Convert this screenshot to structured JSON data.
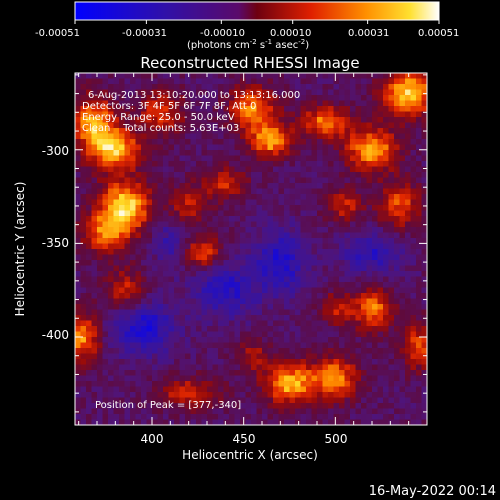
{
  "chart_data": {
    "type": "heatmap",
    "title": "Reconstructed RHESSI Image",
    "xlabel": "Heliocentric X (arcsec)",
    "ylabel": "Heliocentric Y (arcsec)",
    "xlim": [
      358,
      550
    ],
    "ylim": [
      -447,
      -259
    ],
    "x_ticks": [
      400,
      450,
      500
    ],
    "y_ticks": [
      -300,
      -350,
      -400
    ],
    "colorbar": {
      "colormap": "blue-purple-red-yellow-white",
      "range": [
        -0.00051,
        0.00051
      ],
      "ticks": [
        "-0.00051",
        "-0.00031",
        "-0.00010",
        "0.00010",
        "0.00031",
        "0.00051"
      ],
      "unit_label": {
        "prefix": "(photons cm",
        "exp1": "-2",
        "mid1": " s",
        "exp2": "-1",
        "mid2": " asec",
        "exp3": "-2",
        "suffix": ")"
      }
    },
    "annotations": [
      "6-Aug-2013 13:10:20.000 to 13:13:16.000",
      "Detectors: 3F 4F 5F 6F 7F 8F, Att 0",
      "Energy Range: 25.0 - 50.0 keV",
      "Clean    Total counts: 5.63E+03"
    ],
    "peak_text": "Position of Peak = [377,-340]",
    "hotspots": [
      {
        "x": 368,
        "y": -285,
        "amp": 0.8,
        "sx": 8,
        "sy": 10
      },
      {
        "x": 380,
        "y": -300,
        "amp": 0.9,
        "sx": 10,
        "sy": 8
      },
      {
        "x": 385,
        "y": -330,
        "amp": 1.0,
        "sx": 10,
        "sy": 9
      },
      {
        "x": 375,
        "y": -345,
        "amp": 0.7,
        "sx": 9,
        "sy": 7
      },
      {
        "x": 362,
        "y": -400,
        "amp": 0.75,
        "sx": 7,
        "sy": 9
      },
      {
        "x": 385,
        "y": -375,
        "amp": 0.5,
        "sx": 8,
        "sy": 8
      },
      {
        "x": 405,
        "y": -280,
        "amp": 0.55,
        "sx": 9,
        "sy": 8
      },
      {
        "x": 420,
        "y": -330,
        "amp": 0.45,
        "sx": 8,
        "sy": 8
      },
      {
        "x": 428,
        "y": -355,
        "amp": 0.6,
        "sx": 7,
        "sy": 6
      },
      {
        "x": 440,
        "y": -318,
        "amp": 0.5,
        "sx": 8,
        "sy": 6
      },
      {
        "x": 455,
        "y": -278,
        "amp": 0.75,
        "sx": 9,
        "sy": 8
      },
      {
        "x": 465,
        "y": -295,
        "amp": 0.85,
        "sx": 8,
        "sy": 6
      },
      {
        "x": 495,
        "y": -285,
        "amp": 0.7,
        "sx": 10,
        "sy": 6
      },
      {
        "x": 520,
        "y": -300,
        "amp": 0.85,
        "sx": 10,
        "sy": 8
      },
      {
        "x": 540,
        "y": -270,
        "amp": 0.95,
        "sx": 10,
        "sy": 9
      },
      {
        "x": 535,
        "y": -330,
        "amp": 0.6,
        "sx": 8,
        "sy": 9
      },
      {
        "x": 505,
        "y": -330,
        "amp": 0.5,
        "sx": 7,
        "sy": 6
      },
      {
        "x": 500,
        "y": -385,
        "amp": 0.45,
        "sx": 6,
        "sy": 6
      },
      {
        "x": 520,
        "y": -385,
        "amp": 0.7,
        "sx": 8,
        "sy": 8
      },
      {
        "x": 545,
        "y": -405,
        "amp": 0.6,
        "sx": 6,
        "sy": 9
      },
      {
        "x": 475,
        "y": -425,
        "amp": 0.85,
        "sx": 10,
        "sy": 8
      },
      {
        "x": 500,
        "y": -422,
        "amp": 0.75,
        "sx": 9,
        "sy": 8
      },
      {
        "x": 420,
        "y": -430,
        "amp": 0.5,
        "sx": 12,
        "sy": 6
      },
      {
        "x": 455,
        "y": -410,
        "amp": 0.4,
        "sx": 6,
        "sy": 6
      }
    ],
    "coldspots": [
      {
        "x": 395,
        "y": -395,
        "amp": 0.6,
        "sx": 12,
        "sy": 10
      },
      {
        "x": 470,
        "y": -360,
        "amp": 0.55,
        "sx": 10,
        "sy": 12
      },
      {
        "x": 440,
        "y": -375,
        "amp": 0.5,
        "sx": 12,
        "sy": 10
      },
      {
        "x": 520,
        "y": -355,
        "amp": 0.45,
        "sx": 12,
        "sy": 8
      },
      {
        "x": 410,
        "y": -350,
        "amp": 0.35,
        "sx": 6,
        "sy": 10
      }
    ]
  },
  "footer": {
    "timestamp": "16-May-2022 00:14"
  }
}
